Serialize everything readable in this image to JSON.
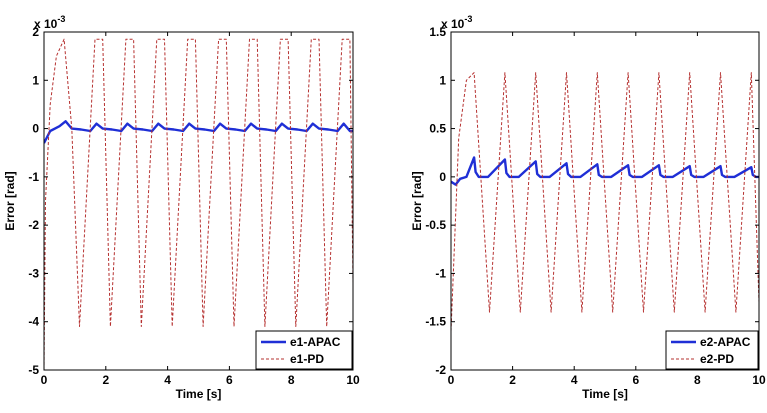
{
  "chart_data": [
    {
      "type": "line",
      "xlabel": "Time [s]",
      "ylabel": "Error [rad]",
      "xlim": [
        0,
        10
      ],
      "ylim": [
        -5,
        2
      ],
      "y_scale_note": "x 10",
      "y_scale_exponent": "-3",
      "x_ticks": [
        0,
        2,
        4,
        6,
        8,
        10
      ],
      "y_ticks": [
        -5,
        -4,
        -3,
        -2,
        -1,
        0,
        1,
        2
      ],
      "grid": false,
      "legend_position": "bottom-right",
      "series": [
        {
          "name": "e1-APAC",
          "color": "#1f2fd6",
          "style": "solid",
          "x": [
            0,
            0.2,
            0.5,
            0.7,
            0.9,
            1.2,
            1.5,
            1.7,
            1.9,
            2.2,
            2.5,
            2.7,
            2.9,
            3.2,
            3.5,
            3.7,
            3.9,
            4.2,
            4.5,
            4.7,
            4.9,
            5.2,
            5.5,
            5.7,
            5.9,
            6.2,
            6.5,
            6.7,
            6.9,
            7.2,
            7.5,
            7.7,
            7.9,
            8.2,
            8.5,
            8.7,
            8.9,
            9.2,
            9.5,
            9.7,
            9.9,
            10
          ],
          "y": [
            -0.3,
            -0.05,
            0.05,
            0.15,
            0.0,
            -0.02,
            -0.05,
            0.1,
            0.0,
            -0.02,
            -0.05,
            0.1,
            0.0,
            -0.02,
            -0.05,
            0.1,
            0.0,
            -0.02,
            -0.05,
            0.1,
            0.0,
            -0.02,
            -0.05,
            0.1,
            0.0,
            -0.02,
            -0.05,
            0.1,
            0.0,
            -0.02,
            -0.05,
            0.1,
            0.0,
            -0.02,
            -0.05,
            0.1,
            0.0,
            -0.02,
            -0.05,
            0.1,
            -0.05,
            -0.05
          ]
        },
        {
          "name": "e1-PD",
          "color": "#b5302f",
          "style": "dashed",
          "x": [
            0,
            0.05,
            0.2,
            0.4,
            0.65,
            0.9,
            1.15,
            1.4,
            1.65,
            1.9,
            2.15,
            2.4,
            2.65,
            2.9,
            3.15,
            3.4,
            3.65,
            3.9,
            4.15,
            4.4,
            4.65,
            4.9,
            5.15,
            5.4,
            5.65,
            5.9,
            6.15,
            6.4,
            6.65,
            6.9,
            7.15,
            7.4,
            7.65,
            7.9,
            8.15,
            8.4,
            8.65,
            8.9,
            9.15,
            9.4,
            9.65,
            9.9,
            10
          ],
          "y": [
            -5.0,
            -1.5,
            0.5,
            1.5,
            1.85,
            0.0,
            -4.1,
            -1.1,
            1.85,
            1.85,
            -4.1,
            -1.1,
            1.85,
            1.85,
            -4.1,
            -1.1,
            1.85,
            1.85,
            -4.1,
            -1.1,
            1.85,
            1.85,
            -4.1,
            -1.1,
            1.85,
            1.85,
            -4.1,
            -1.1,
            1.85,
            1.85,
            -4.1,
            -1.1,
            1.85,
            1.85,
            -4.1,
            -1.1,
            1.85,
            1.85,
            -4.1,
            -1.1,
            1.85,
            1.85,
            -3.2
          ]
        }
      ]
    },
    {
      "type": "line",
      "xlabel": "Time [s]",
      "ylabel": "Error [rad]",
      "xlim": [
        0,
        10
      ],
      "ylim": [
        -2,
        1.5
      ],
      "y_scale_note": "x 10",
      "y_scale_exponent": "-3",
      "x_ticks": [
        0,
        2,
        4,
        6,
        8,
        10
      ],
      "y_ticks": [
        -2,
        -1.5,
        -1,
        -0.5,
        0,
        0.5,
        1,
        1.5
      ],
      "grid": false,
      "legend_position": "bottom-right",
      "series": [
        {
          "name": "e2-APAC",
          "color": "#1f2fd6",
          "style": "solid",
          "x": [
            0,
            0.15,
            0.3,
            0.5,
            0.75,
            0.8,
            0.9,
            1.2,
            1.75,
            1.8,
            1.9,
            2.2,
            2.75,
            2.8,
            2.9,
            3.2,
            3.75,
            3.8,
            3.9,
            4.2,
            4.75,
            4.8,
            4.9,
            5.2,
            5.75,
            5.8,
            5.9,
            6.2,
            6.75,
            6.8,
            6.9,
            7.2,
            7.75,
            7.8,
            7.9,
            8.2,
            8.75,
            8.8,
            8.9,
            9.2,
            9.75,
            9.8,
            9.9,
            10
          ],
          "y": [
            -0.05,
            -0.08,
            -0.02,
            0.0,
            0.2,
            0.05,
            0.0,
            0.0,
            0.18,
            0.04,
            0.0,
            0.0,
            0.16,
            0.03,
            0.0,
            0.0,
            0.14,
            0.03,
            0.0,
            0.0,
            0.13,
            0.02,
            0.0,
            0.0,
            0.12,
            0.02,
            0.0,
            0.0,
            0.12,
            0.02,
            0.0,
            0.0,
            0.11,
            0.02,
            0.0,
            0.0,
            0.11,
            0.02,
            0.0,
            0.0,
            0.1,
            0.02,
            0.0,
            0.0
          ]
        },
        {
          "name": "e2-PD",
          "color": "#b5302f",
          "style": "dashed",
          "x": [
            0,
            0.1,
            0.25,
            0.5,
            0.75,
            1.25,
            1.75,
            2.25,
            2.75,
            3.25,
            3.75,
            4.25,
            4.75,
            5.25,
            5.75,
            6.25,
            6.75,
            7.25,
            7.75,
            8.25,
            8.75,
            9.25,
            9.75,
            10
          ],
          "y": [
            -1.6,
            -0.8,
            0.4,
            1.0,
            1.08,
            -1.4,
            1.08,
            -1.4,
            1.08,
            -1.4,
            1.08,
            -1.4,
            1.08,
            -1.4,
            1.08,
            -1.4,
            1.08,
            -1.4,
            1.08,
            -1.4,
            1.08,
            -1.4,
            1.08,
            -1.3
          ]
        }
      ]
    }
  ]
}
